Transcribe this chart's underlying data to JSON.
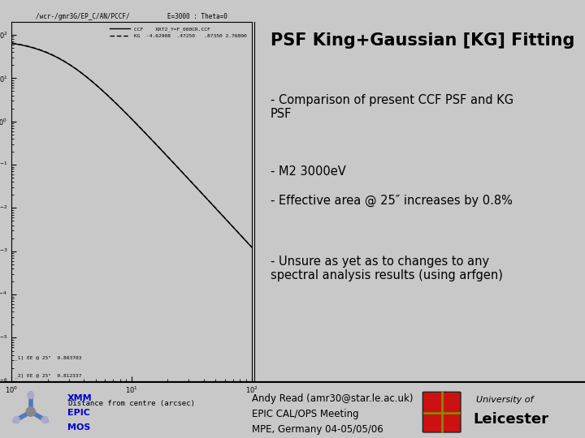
{
  "title_right": "PSF King+Gaussian [KG] Fitting",
  "plot_title_left": "/wcr-/gmr3G/EP_C/AN/PCCF/",
  "plot_title_right": "E=3000 : Theta=0",
  "legend_ccf": "CCF",
  "legend_ccf_label": "XRT2_Y=F_000CR.CCF",
  "legend_kg": "KG",
  "legend_kg_label": "-4.62908  .47250   .87350 2.76800",
  "xlabel": "Distance from centre (arcsec)",
  "annotation1": "_1] EE @ 25\"  0.803703",
  "annotation2": "_2] EE @ 25\"  0.812337",
  "xlim_log": [
    1,
    100
  ],
  "ylim_log": [
    1e-06,
    200
  ],
  "bg_color": "#c8c8c8",
  "line_color": "#000000",
  "footer_text1": "Andy Read (amr30@star.le.ac.uk)",
  "footer_text2": "EPIC CAL/OPS Meeting",
  "footer_text3": "MPE, Germany 04-05/05/06",
  "right_bg": "#ffffff",
  "fig_bg": "#c8c8c8",
  "footer_bg": "#c8c8c8"
}
